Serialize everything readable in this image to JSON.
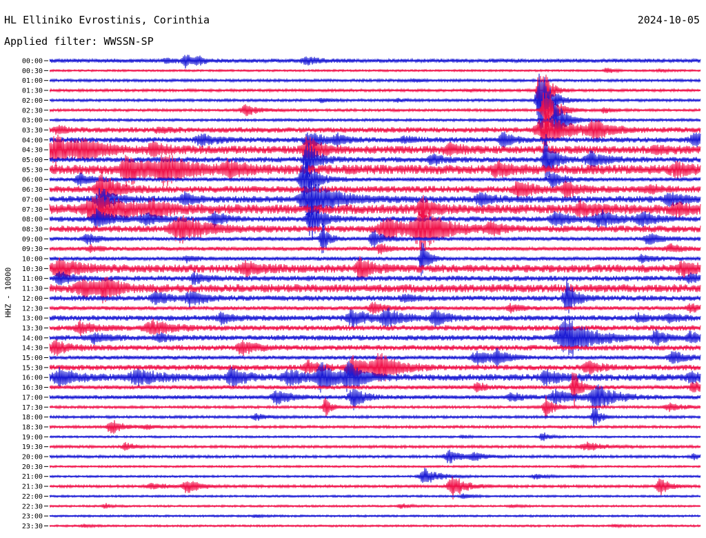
{
  "header": {
    "station": "HL Elliniko Evrostinis, Corinthia",
    "date": "2024-10-05",
    "filter": "Applied filter: WWSSN-SP"
  },
  "chart_data": {
    "type": "line",
    "subtype": "helicorder",
    "ylabel": "HHZ - 10000",
    "colors": [
      "#1a1ad4",
      "#f0124a"
    ],
    "color_names": [
      "blue",
      "red"
    ],
    "rows": [
      {
        "label": "00:00",
        "base": 3,
        "events": [
          [
            170,
            3,
            10
          ],
          [
            198,
            9,
            8
          ],
          [
            216,
            4,
            8
          ],
          [
            372,
            6,
            10
          ]
        ]
      },
      {
        "label": "00:30",
        "base": 1.5,
        "events": [
          [
            808,
            5,
            6
          ],
          [
            885,
            2,
            8
          ]
        ]
      },
      {
        "label": "01:00",
        "base": 2,
        "events": [
          [
            530,
            2,
            8
          ]
        ]
      },
      {
        "label": "01:30",
        "base": 2,
        "events": [
          [
            712,
            45,
            8
          ],
          [
            610,
            2,
            8
          ]
        ]
      },
      {
        "label": "02:00",
        "base": 2,
        "events": [
          [
            395,
            3,
            8
          ],
          [
            712,
            50,
            10
          ],
          [
            505,
            2,
            8
          ]
        ]
      },
      {
        "label": "02:30",
        "base": 2,
        "events": [
          [
            285,
            8,
            12
          ],
          [
            720,
            40,
            10
          ],
          [
            805,
            4,
            8
          ]
        ]
      },
      {
        "label": "03:00",
        "base": 2,
        "events": [
          [
            735,
            30,
            10
          ]
        ]
      },
      {
        "label": "03:30",
        "base": 4,
        "events": [
          [
            12,
            6,
            8
          ],
          [
            160,
            4,
            10
          ],
          [
            720,
            24,
            22
          ],
          [
            790,
            14,
            14
          ]
        ]
      },
      {
        "label": "04:00",
        "base": 4,
        "events": [
          [
            220,
            10,
            12
          ],
          [
            378,
            12,
            14
          ],
          [
            418,
            6,
            10
          ],
          [
            658,
            12,
            10
          ],
          [
            936,
            10,
            12
          ],
          [
            515,
            5,
            8
          ]
        ]
      },
      {
        "label": "04:30",
        "base": 6,
        "events": [
          [
            10,
            20,
            18
          ],
          [
            50,
            12,
            20
          ],
          [
            150,
            8,
            14
          ],
          [
            375,
            20,
            12
          ],
          [
            580,
            8,
            12
          ],
          [
            880,
            5,
            10
          ]
        ]
      },
      {
        "label": "05:00",
        "base": 4,
        "events": [
          [
            375,
            25,
            10
          ],
          [
            555,
            8,
            10
          ],
          [
            785,
            12,
            14
          ],
          [
            720,
            35,
            8
          ]
        ]
      },
      {
        "label": "05:30",
        "base": 7,
        "events": [
          [
            115,
            22,
            18
          ],
          [
            170,
            20,
            22
          ],
          [
            260,
            10,
            18
          ],
          [
            650,
            10,
            12
          ],
          [
            910,
            10,
            14
          ]
        ]
      },
      {
        "label": "06:00",
        "base": 3,
        "events": [
          [
            45,
            10,
            12
          ],
          [
            370,
            30,
            12
          ],
          [
            730,
            12,
            10
          ]
        ]
      },
      {
        "label": "06:30",
        "base": 5,
        "events": [
          [
            75,
            25,
            14
          ],
          [
            680,
            14,
            12
          ],
          [
            750,
            12,
            12
          ],
          [
            870,
            5,
            12
          ]
        ]
      },
      {
        "label": "07:00",
        "base": 5,
        "events": [
          [
            75,
            14,
            14
          ],
          [
            378,
            30,
            22
          ],
          [
            195,
            8,
            10
          ],
          [
            625,
            8,
            12
          ],
          [
            900,
            10,
            12
          ]
        ]
      },
      {
        "label": "07:30",
        "base": 7,
        "events": [
          [
            70,
            22,
            28
          ],
          [
            150,
            10,
            14
          ],
          [
            540,
            16,
            10
          ],
          [
            770,
            10,
            14
          ],
          [
            910,
            10,
            12
          ]
        ]
      },
      {
        "label": "08:00",
        "base": 4,
        "events": [
          [
            70,
            14,
            14
          ],
          [
            140,
            8,
            14
          ],
          [
            240,
            10,
            12
          ],
          [
            380,
            30,
            10
          ],
          [
            735,
            12,
            14
          ],
          [
            800,
            12,
            16
          ],
          [
            860,
            10,
            14
          ]
        ]
      },
      {
        "label": "08:30",
        "base": 5,
        "events": [
          [
            190,
            20,
            24
          ],
          [
            490,
            16,
            20
          ],
          [
            540,
            30,
            22
          ],
          [
            640,
            8,
            12
          ]
        ]
      },
      {
        "label": "09:00",
        "base": 3,
        "events": [
          [
            55,
            8,
            10
          ],
          [
            470,
            12,
            10
          ],
          [
            870,
            8,
            14
          ],
          [
            395,
            25,
            6
          ]
        ]
      },
      {
        "label": "09:30",
        "base": 3,
        "events": [
          [
            60,
            4,
            10
          ],
          [
            480,
            8,
            8
          ],
          [
            900,
            6,
            12
          ]
        ]
      },
      {
        "label": "10:00",
        "base": 3,
        "events": [
          [
            200,
            4,
            8
          ],
          [
            540,
            25,
            6
          ],
          [
            860,
            6,
            10
          ]
        ]
      },
      {
        "label": "10:30",
        "base": 6,
        "events": [
          [
            15,
            14,
            18
          ],
          [
            285,
            10,
            14
          ],
          [
            450,
            18,
            10
          ],
          [
            920,
            10,
            16
          ]
        ]
      },
      {
        "label": "11:00",
        "base": 4,
        "events": [
          [
            15,
            8,
            12
          ],
          [
            210,
            8,
            10
          ],
          [
            930,
            6,
            10
          ]
        ]
      },
      {
        "label": "11:30",
        "base": 6,
        "events": [
          [
            50,
            12,
            20
          ],
          [
            80,
            16,
            10
          ]
        ]
      },
      {
        "label": "12:00",
        "base": 4,
        "events": [
          [
            155,
            10,
            12
          ],
          [
            205,
            10,
            14
          ],
          [
            515,
            6,
            10
          ],
          [
            750,
            30,
            8
          ]
        ]
      },
      {
        "label": "12:30",
        "base": 3,
        "events": [
          [
            470,
            8,
            12
          ],
          [
            670,
            6,
            10
          ],
          [
            930,
            6,
            10
          ]
        ]
      },
      {
        "label": "13:00",
        "base": 4,
        "events": [
          [
            250,
            8,
            12
          ],
          [
            440,
            12,
            16
          ],
          [
            490,
            12,
            16
          ],
          [
            560,
            14,
            10
          ],
          [
            855,
            6,
            10
          ],
          [
            900,
            6,
            10
          ]
        ]
      },
      {
        "label": "13:30",
        "base": 4,
        "events": [
          [
            45,
            8,
            14
          ],
          [
            150,
            10,
            20
          ]
        ]
      },
      {
        "label": "14:00",
        "base": 4,
        "events": [
          [
            65,
            8,
            12
          ],
          [
            160,
            6,
            10
          ],
          [
            750,
            30,
            24
          ],
          [
            880,
            10,
            10
          ],
          [
            930,
            8,
            10
          ]
        ]
      },
      {
        "label": "14:30",
        "base": 4,
        "events": [
          [
            10,
            10,
            14
          ],
          [
            280,
            10,
            14
          ]
        ]
      },
      {
        "label": "15:00",
        "base": 3,
        "events": [
          [
            620,
            10,
            14
          ],
          [
            650,
            12,
            10
          ],
          [
            905,
            10,
            12
          ]
        ]
      },
      {
        "label": "15:30",
        "base": 4,
        "events": [
          [
            375,
            10,
            12
          ],
          [
            440,
            16,
            14
          ],
          [
            480,
            20,
            18
          ],
          [
            780,
            10,
            12
          ]
        ]
      },
      {
        "label": "16:00",
        "base": 5,
        "events": [
          [
            15,
            12,
            16
          ],
          [
            130,
            10,
            24
          ],
          [
            265,
            14,
            12
          ],
          [
            350,
            10,
            18
          ],
          [
            395,
            20,
            14
          ],
          [
            435,
            18,
            14
          ],
          [
            720,
            10,
            14
          ],
          [
            930,
            6,
            12
          ]
        ]
      },
      {
        "label": "16:30",
        "base": 3,
        "events": [
          [
            620,
            8,
            8
          ],
          [
            935,
            8,
            10
          ],
          [
            760,
            30,
            6
          ]
        ]
      },
      {
        "label": "17:00",
        "base": 3,
        "events": [
          [
            330,
            10,
            14
          ],
          [
            440,
            18,
            10
          ],
          [
            670,
            6,
            12
          ],
          [
            735,
            10,
            18
          ],
          [
            795,
            18,
            18
          ]
        ]
      },
      {
        "label": "17:30",
        "base": 2,
        "events": [
          [
            400,
            14,
            6
          ],
          [
            720,
            16,
            8
          ],
          [
            900,
            6,
            14
          ]
        ]
      },
      {
        "label": "18:00",
        "base": 2,
        "events": [
          [
            300,
            5,
            10
          ],
          [
            790,
            18,
            6
          ]
        ]
      },
      {
        "label": "18:30",
        "base": 2,
        "events": [
          [
            90,
            12,
            10
          ],
          [
            140,
            3,
            10
          ]
        ]
      },
      {
        "label": "19:00",
        "base": 1.5,
        "events": [
          [
            715,
            8,
            6
          ],
          [
            600,
            2,
            8
          ]
        ]
      },
      {
        "label": "19:30",
        "base": 2,
        "events": [
          [
            110,
            6,
            8
          ],
          [
            780,
            6,
            16
          ]
        ]
      },
      {
        "label": "20:00",
        "base": 2,
        "events": [
          [
            580,
            10,
            12
          ],
          [
            615,
            6,
            10
          ],
          [
            935,
            4,
            8
          ]
        ]
      },
      {
        "label": "20:30",
        "base": 1.5,
        "events": [
          [
            760,
            2,
            8
          ]
        ]
      },
      {
        "label": "21:00",
        "base": 1.5,
        "events": [
          [
            545,
            12,
            14
          ],
          [
            705,
            4,
            10
          ]
        ]
      },
      {
        "label": "21:30",
        "base": 2,
        "events": [
          [
            150,
            4,
            16
          ],
          [
            200,
            10,
            12
          ],
          [
            585,
            18,
            12
          ],
          [
            885,
            16,
            8
          ]
        ]
      },
      {
        "label": "22:00",
        "base": 1.5,
        "events": [
          [
            600,
            4,
            8
          ]
        ]
      },
      {
        "label": "22:30",
        "base": 1.5,
        "events": [
          [
            80,
            4,
            6
          ],
          [
            510,
            4,
            8
          ],
          [
            670,
            2,
            8
          ]
        ]
      },
      {
        "label": "23:00",
        "base": 1.5,
        "events": [
          [
            300,
            2,
            8
          ]
        ]
      },
      {
        "label": "23:30",
        "base": 1.5,
        "events": [
          [
            50,
            2,
            8
          ],
          [
            820,
            2,
            8
          ]
        ]
      }
    ]
  }
}
